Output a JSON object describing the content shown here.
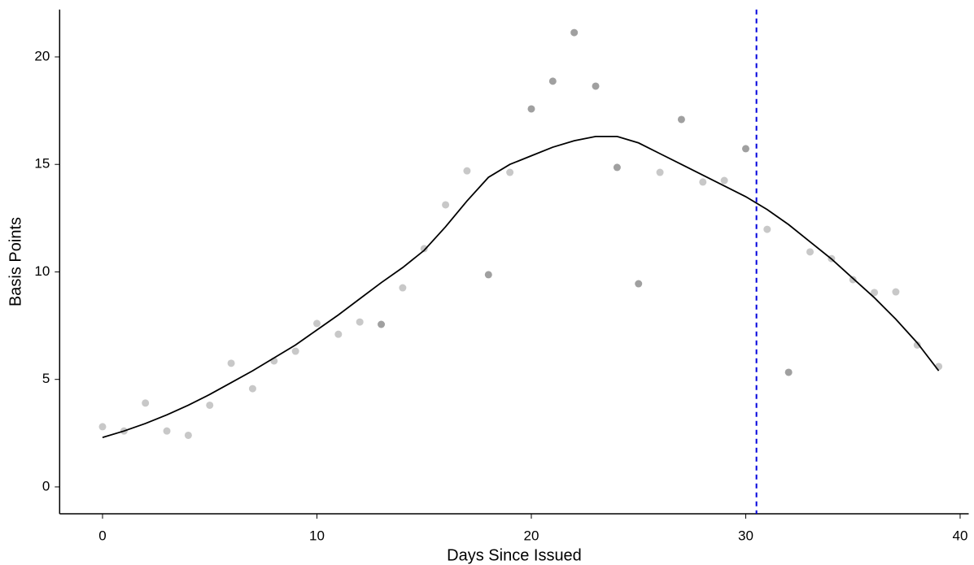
{
  "chart_data": {
    "type": "scatter",
    "x_label": "Days Since Issued",
    "y_label": "Basis Points",
    "x": [
      0,
      1,
      2,
      3,
      4,
      5,
      6,
      7,
      8,
      9,
      10,
      11,
      12,
      13,
      14,
      15,
      16,
      17,
      18,
      19,
      20,
      21,
      22,
      23,
      24,
      25,
      26,
      27,
      28,
      29,
      30,
      31,
      32,
      33,
      34,
      35,
      36,
      37,
      38,
      39
    ],
    "values": [
      2.8,
      2.6,
      3.9,
      2.6,
      2.4,
      3.8,
      5.75,
      4.57,
      5.86,
      6.31,
      7.6,
      7.1,
      7.67,
      7.56,
      9.26,
      11.08,
      13.12,
      14.7,
      9.87,
      14.63,
      17.58,
      18.87,
      21.13,
      18.64,
      14.86,
      9.45,
      14.63,
      17.09,
      14.18,
      14.25,
      15.73,
      11.98,
      5.33,
      10.93,
      10.62,
      9.64,
      9.04,
      9.07,
      6.6,
      5.6
    ],
    "point_colors": [
      "#c8c8c8",
      "#c8c8c8",
      "#c8c8c8",
      "#c8c8c8",
      "#c8c8c8",
      "#c8c8c8",
      "#c8c8c8",
      "#c8c8c8",
      "#c8c8c8",
      "#c8c8c8",
      "#c8c8c8",
      "#c8c8c8",
      "#c8c8c8",
      "#a0a0a0",
      "#c8c8c8",
      "#c8c8c8",
      "#c8c8c8",
      "#c8c8c8",
      "#a0a0a0",
      "#c8c8c8",
      "#a0a0a0",
      "#a0a0a0",
      "#a0a0a0",
      "#a0a0a0",
      "#a0a0a0",
      "#a0a0a0",
      "#c8c8c8",
      "#a0a0a0",
      "#c8c8c8",
      "#c8c8c8",
      "#a0a0a0",
      "#c8c8c8",
      "#a0a0a0",
      "#c8c8c8",
      "#c8c8c8",
      "#c8c8c8",
      "#c8c8c8",
      "#c8c8c8",
      "#c8c8c8",
      "#c8c8c8"
    ],
    "smooth": {
      "color": "#000000",
      "values": [
        2.3,
        2.6,
        2.95,
        3.35,
        3.8,
        4.3,
        4.85,
        5.4,
        6.0,
        6.6,
        7.3,
        8.0,
        8.75,
        9.5,
        10.2,
        11.0,
        12.1,
        13.3,
        14.4,
        15.0,
        15.4,
        15.8,
        16.1,
        16.3,
        16.3,
        16.0,
        15.5,
        15.0,
        14.5,
        14.0,
        13.5,
        12.9,
        12.2,
        11.4,
        10.6,
        9.7,
        8.8,
        7.8,
        6.7,
        5.4
      ]
    },
    "vline": {
      "value": 30.5,
      "color": "#0000dd"
    },
    "xlim": [
      -2,
      40.4
    ],
    "xticks": [
      0,
      10,
      20,
      30,
      40
    ],
    "ylim": [
      -1.25,
      22.2
    ],
    "yticks": [
      0,
      5,
      10,
      15,
      20
    ]
  }
}
